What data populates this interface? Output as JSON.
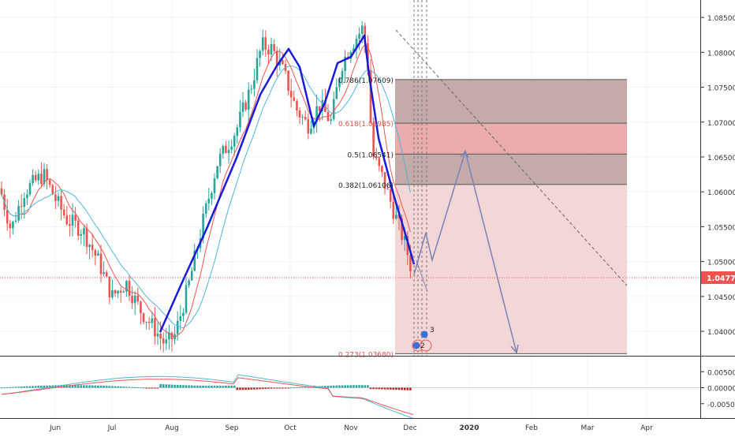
{
  "chart_data": {
    "type": "candlestick",
    "price_axis": {
      "min": 1.0365,
      "max": 1.0875,
      "ticks": [
        "1.08500",
        "1.08000",
        "1.07500",
        "1.07000",
        "1.06500",
        "1.06000",
        "1.05500",
        "1.05000",
        "1.04500",
        "1.04000"
      ],
      "tick_values": [
        1.085,
        1.08,
        1.075,
        1.07,
        1.065,
        1.06,
        1.055,
        1.05,
        1.045,
        1.04
      ],
      "current_price_label": "1.04770",
      "current_price": 1.0477
    },
    "macd_axis": {
      "ticks": [
        "0.00500",
        "0.00000",
        "-0.00500"
      ],
      "tick_values": [
        0.005,
        0.0,
        -0.005
      ]
    },
    "time_axis": {
      "labels": [
        "Jun",
        "Jul",
        "Aug",
        "Sep",
        "Oct",
        "Nov",
        "Dec",
        "2020",
        "Feb",
        "Mar",
        "Apr"
      ],
      "bold": [
        "2020"
      ]
    },
    "fib_levels": [
      {
        "label": "0.786(1.07609)",
        "value": 1.07609
      },
      {
        "label": "0.618(1.06985)",
        "value": 1.06985
      },
      {
        "label": "0.5(1.06541)",
        "value": 1.06541
      },
      {
        "label": "0.382(1.06106)",
        "value": 1.06106
      },
      {
        "label": "0.273(1.03680)",
        "value": 1.0368
      }
    ],
    "markers": [
      "3",
      "2"
    ],
    "colors": {
      "up": "#26a69a",
      "down": "#ef5350",
      "pattern_line": "#1a1adb",
      "projection": "#7b82b8",
      "zone_dark": "#bfa1a1",
      "zone_mid": "#e8a6a6",
      "zone_light": "#f2d4d4",
      "price_label_bg": "#ef5350",
      "ma_fast": "#ef5350",
      "ma_slow": "#4fb6d8"
    }
  }
}
